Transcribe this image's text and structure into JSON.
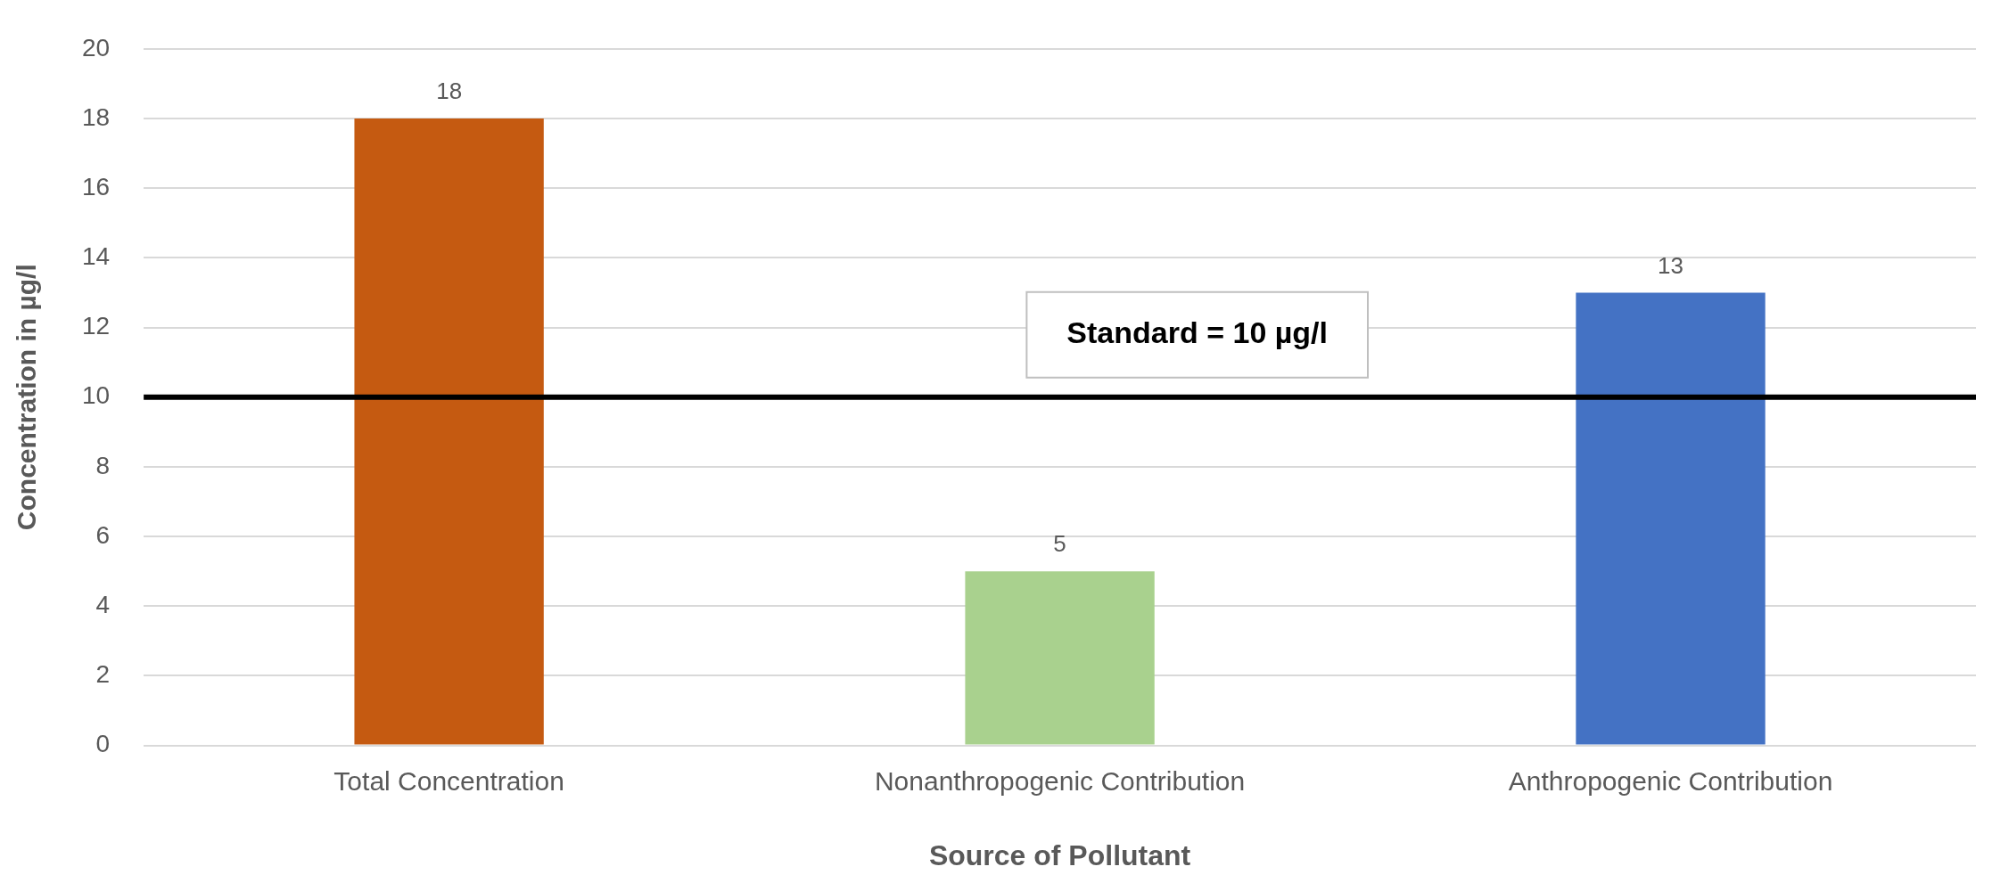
{
  "chart_data": {
    "type": "bar",
    "xlabel": "Source of Pollutant",
    "ylabel": "Concentration in µg/l",
    "categories": [
      "Total Concentration",
      "Nonanthropogenic Contribution",
      "Anthropogenic Contribution"
    ],
    "values": [
      18,
      5,
      13
    ],
    "colors": [
      "#c55a11",
      "#a9d18e",
      "#4472c4"
    ],
    "ylim": [
      0,
      20
    ],
    "yticks": [
      0,
      2,
      4,
      6,
      8,
      10,
      12,
      14,
      16,
      18,
      20
    ],
    "grid": "y",
    "data_labels": true,
    "legend": false,
    "ref_lines": [
      {
        "axis": "y",
        "value": 10,
        "label": "Standard = 10 µg/l",
        "color": "#000000",
        "line_style": "solid"
      }
    ]
  }
}
